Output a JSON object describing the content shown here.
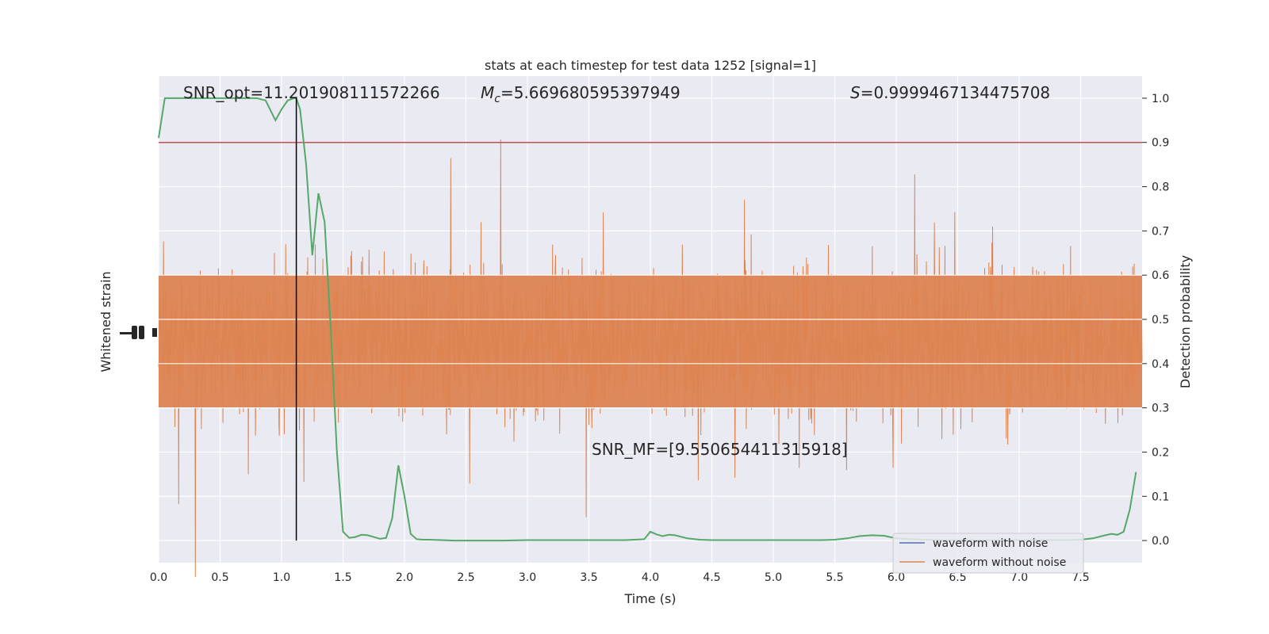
{
  "chart_data": {
    "type": "line",
    "title": "stats at each timestep for test data 1252 [signal=1]",
    "xlabel": "Time (s)",
    "ylabel_left": "Whitened strain",
    "ylabel_right": "Detection probability",
    "xlim": [
      0,
      8
    ],
    "ylim_right": [
      -0.05,
      1.05
    ],
    "x_ticks": [
      "0.0",
      "0.5",
      "1.0",
      "1.5",
      "2.0",
      "2.5",
      "3.0",
      "3.5",
      "4.0",
      "4.5",
      "5.0",
      "5.5",
      "6.0",
      "6.5",
      "7.0",
      "7.5"
    ],
    "y_ticks_right": [
      "0.0",
      "0.1",
      "0.2",
      "0.3",
      "0.4",
      "0.5",
      "0.6",
      "0.7",
      "0.8",
      "0.9",
      "1.0"
    ],
    "grid": true,
    "legend_position": "lower-right",
    "annotations": {
      "snr_opt": "SNR_opt=11.201908111572266",
      "mc_prefix": "M",
      "mc_sub": "c",
      "mc_value": "=5.669680595397949",
      "s_prefix": "S",
      "s_value": "=0.9999467134475708",
      "snr_mf": "SNR_MF=[9.550654411315918]"
    },
    "threshold": 0.9,
    "peak_time": 1.12,
    "series": [
      {
        "name": "waveform with noise",
        "color": "#4c72b0",
        "kind": "strain"
      },
      {
        "name": "waveform without noise",
        "color": "#dd8452",
        "kind": "strain"
      },
      {
        "color": "#55a868",
        "kind": "probability",
        "x": [
          0.0,
          0.05,
          0.1,
          0.2,
          0.3,
          0.4,
          0.5,
          0.6,
          0.7,
          0.8,
          0.87,
          0.95,
          1.0,
          1.05,
          1.1,
          1.12,
          1.15,
          1.2,
          1.25,
          1.3,
          1.35,
          1.4,
          1.45,
          1.5,
          1.55,
          1.6,
          1.65,
          1.7,
          1.75,
          1.8,
          1.85,
          1.9,
          1.95,
          2.0,
          2.05,
          2.1,
          2.15,
          2.2,
          2.3,
          2.4,
          2.5,
          2.6,
          2.8,
          3.0,
          3.2,
          3.4,
          3.6,
          3.8,
          3.95,
          4.0,
          4.05,
          4.1,
          4.15,
          4.2,
          4.3,
          4.4,
          4.5,
          4.6,
          4.8,
          5.0,
          5.2,
          5.4,
          5.5,
          5.6,
          5.7,
          5.8,
          5.9,
          6.0,
          6.2,
          6.4,
          6.6,
          6.8,
          7.0,
          7.2,
          7.4,
          7.5,
          7.6,
          7.7,
          7.75,
          7.8,
          7.85,
          7.9,
          7.95
        ],
        "y": [
          0.91,
          1.0,
          1.0,
          1.0,
          1.0,
          1.0,
          1.0,
          1.0,
          1.0,
          1.0,
          0.995,
          0.95,
          0.975,
          0.995,
          1.0,
          1.0,
          0.975,
          0.85,
          0.645,
          0.785,
          0.72,
          0.48,
          0.2,
          0.02,
          0.006,
          0.008,
          0.013,
          0.012,
          0.008,
          0.004,
          0.006,
          0.05,
          0.17,
          0.1,
          0.015,
          0.003,
          0.002,
          0.002,
          0.001,
          0.0,
          0.0,
          0.0,
          0.0,
          0.001,
          0.001,
          0.001,
          0.001,
          0.001,
          0.003,
          0.02,
          0.014,
          0.01,
          0.013,
          0.012,
          0.005,
          0.002,
          0.001,
          0.001,
          0.001,
          0.001,
          0.001,
          0.001,
          0.002,
          0.005,
          0.01,
          0.012,
          0.011,
          0.005,
          0.002,
          0.001,
          0.001,
          0.001,
          0.001,
          0.001,
          0.001,
          0.002,
          0.005,
          0.012,
          0.015,
          0.013,
          0.02,
          0.07,
          0.155
        ]
      }
    ]
  }
}
